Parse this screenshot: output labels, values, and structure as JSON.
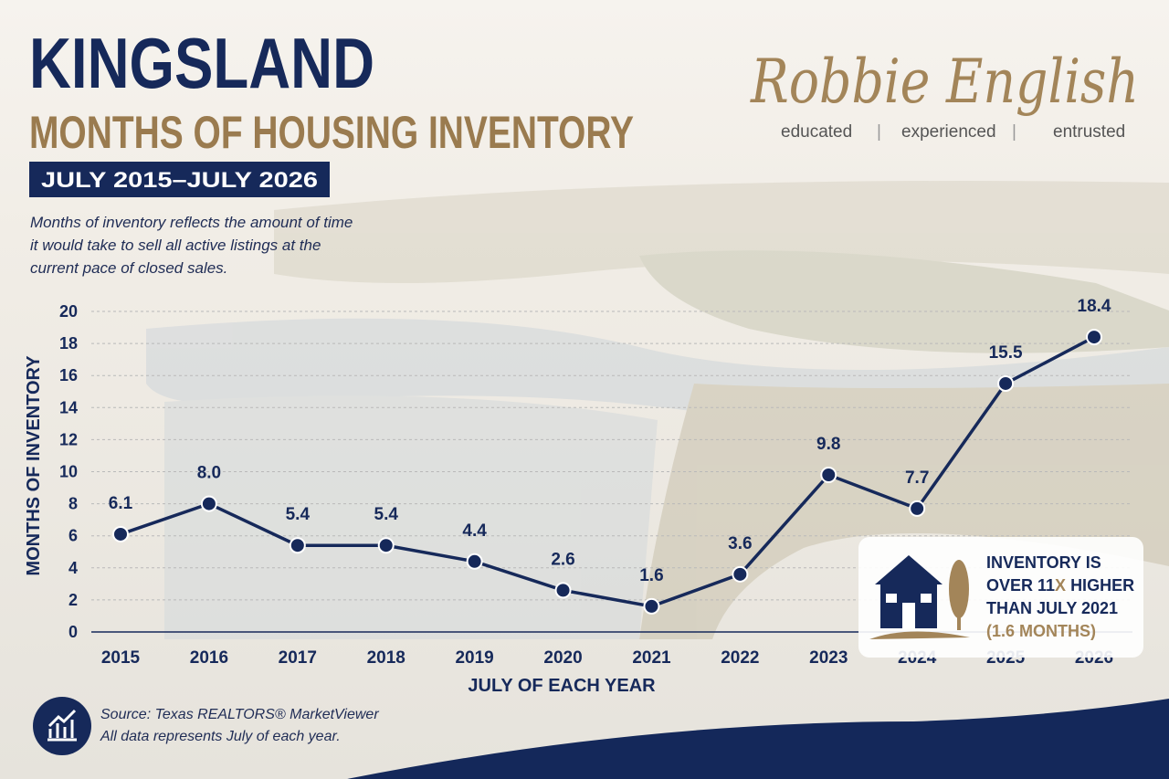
{
  "chart_data": {
    "type": "line",
    "title": "KINGSLAND",
    "subtitle": "MONTHS OF HOUSING INVENTORY",
    "date_range": "JULY 2015–JULY 2026",
    "description": [
      "Months of inventory reflects the amount of time",
      "it would take to sell all active listings at the",
      "current pace of closed sales."
    ],
    "y_label": "MONTHS OF INVENTORY",
    "x_label": "JULY OF EACH YEAR",
    "categories": [
      "2015",
      "2016",
      "2017",
      "2018",
      "2019",
      "2020",
      "2021",
      "2022",
      "2023",
      "2024",
      "2025",
      "2026"
    ],
    "values": [
      6.1,
      8.0,
      5.4,
      5.4,
      4.4,
      2.6,
      1.6,
      3.6,
      9.8,
      7.7,
      15.5,
      18.4
    ],
    "value_labels": [
      "6.1",
      "8.0",
      "5.4",
      "5.4",
      "4.4",
      "2.6",
      "1.6",
      "3.6",
      "9.8",
      "7.7",
      "15.5",
      "18.4"
    ],
    "color": "#16295a",
    "ylim": [
      0,
      20
    ],
    "yticks": [
      0,
      2,
      4,
      6,
      8,
      10,
      12,
      14,
      16,
      18,
      20
    ],
    "grid": true,
    "callout": {
      "line1": "INVENTORY IS",
      "line2a": "OVER 11",
      "line2b": "X",
      "line2c": "HIGHER",
      "line3": "THAN JULY 2021",
      "line4": "(1.6 MONTHS)"
    },
    "brand": {
      "name": "Robbie English",
      "tagline": [
        "educated",
        "experienced",
        "entrusted"
      ]
    },
    "source": [
      "Source: Texas REALTORS® MarketViewer",
      "All data represents July of each year."
    ]
  }
}
